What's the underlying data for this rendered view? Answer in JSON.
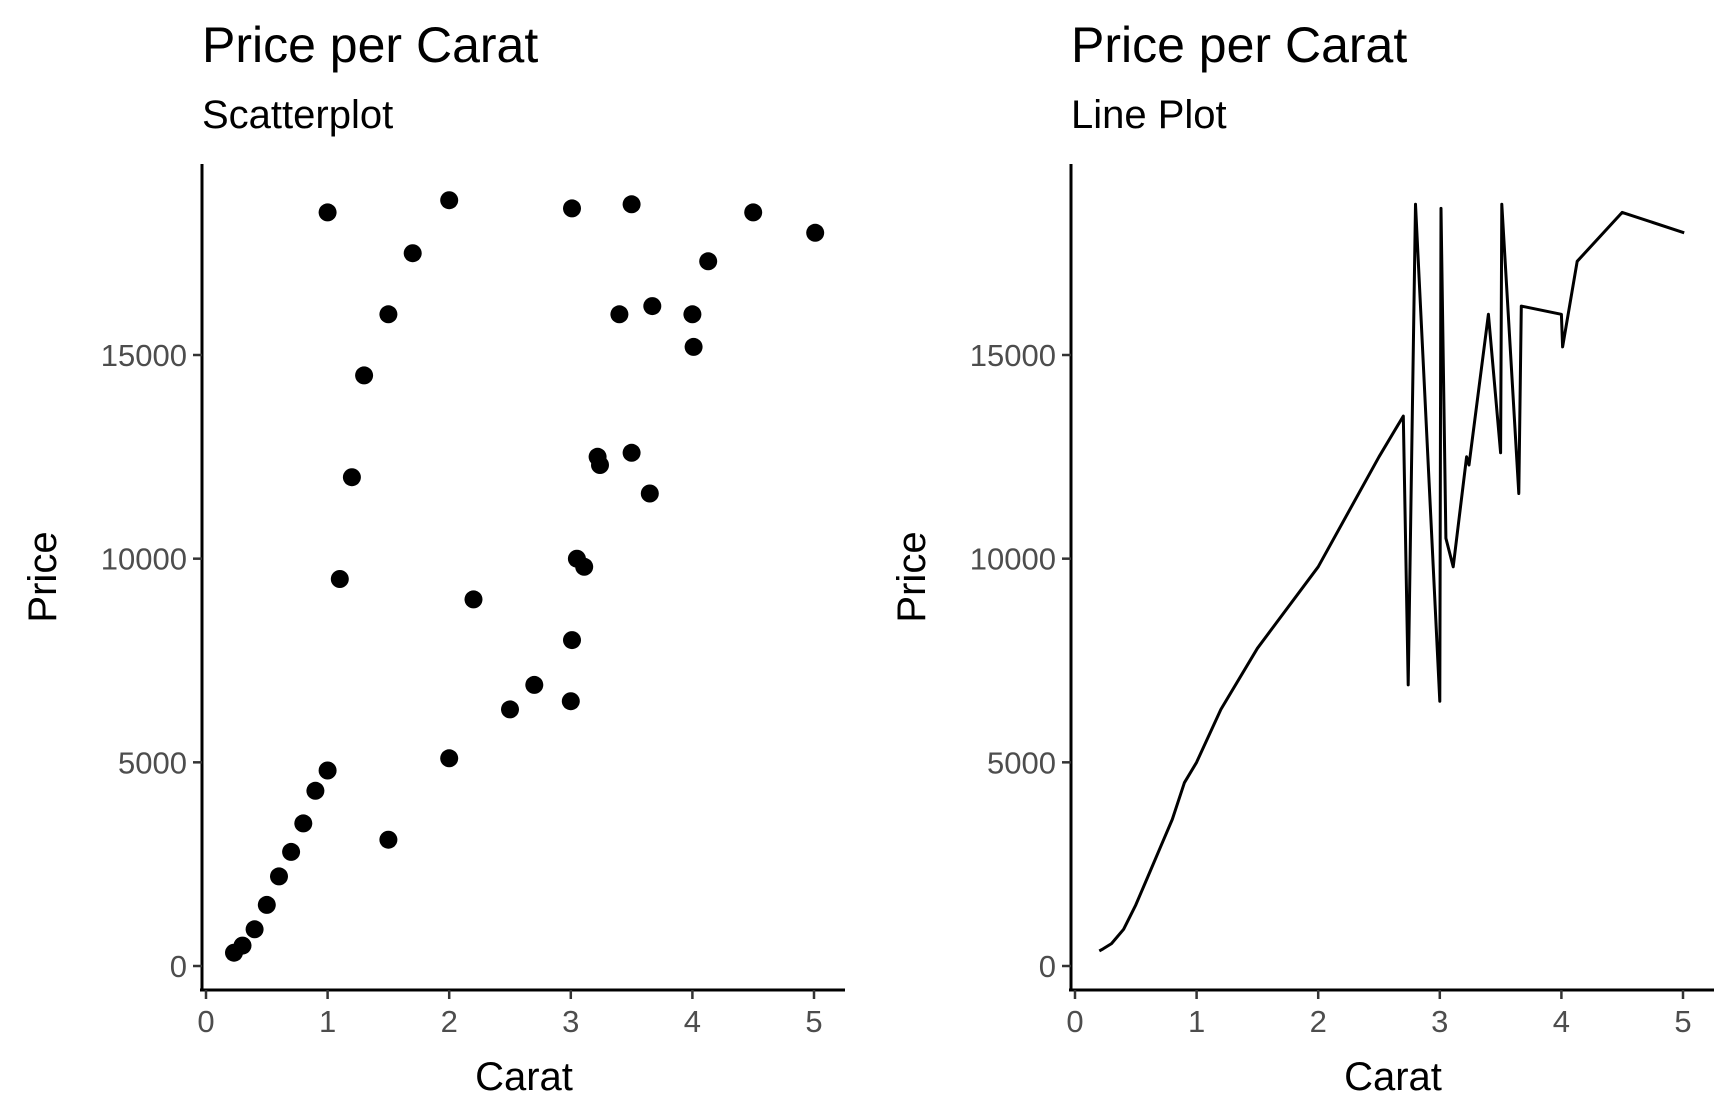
{
  "chart_data": [
    {
      "type": "scatter",
      "title": "Price per Carat",
      "subtitle": "Scatterplot",
      "xlabel": "Carat",
      "ylabel": "Price",
      "xlim": [
        0,
        5.2
      ],
      "ylim": [
        0,
        18800
      ],
      "xticks": [
        "0",
        "1",
        "2",
        "3",
        "4",
        "5"
      ],
      "yticks": [
        "0",
        "5000",
        "10000",
        "15000"
      ],
      "grid": false,
      "mark_color": "#000000",
      "series": [
        {
          "x": [
            0.23,
            0.3,
            0.4,
            0.5,
            0.6,
            0.7,
            0.8,
            0.9,
            1.0,
            1.0,
            1.1,
            1.2,
            1.3,
            1.5,
            1.5,
            1.7,
            2.0,
            2.0,
            2.2,
            2.5,
            2.7,
            3.0,
            3.01,
            3.01,
            3.05,
            3.11,
            3.22,
            3.24,
            3.4,
            3.5,
            3.5,
            3.65,
            3.67,
            4.0,
            4.01,
            4.13,
            4.5,
            5.01
          ],
          "y": [
            326,
            500,
            900,
            1500,
            2200,
            2800,
            3500,
            4300,
            4800,
            18500,
            9500,
            12000,
            14500,
            16000,
            3100,
            17500,
            18800,
            5100,
            9000,
            6300,
            6900,
            6500,
            8000,
            18600,
            10000,
            9800,
            12500,
            12300,
            16000,
            18700,
            12600,
            11600,
            16200,
            16000,
            15200,
            17300,
            18500,
            18000
          ]
        }
      ]
    },
    {
      "type": "line",
      "title": "Price per Carat",
      "subtitle": "Line Plot",
      "xlabel": "Carat",
      "ylabel": "Price",
      "xlim": [
        0,
        5.2
      ],
      "ylim": [
        0,
        18800
      ],
      "xticks": [
        "0",
        "1",
        "2",
        "3",
        "4",
        "5"
      ],
      "yticks": [
        "0",
        "5000",
        "10000",
        "15000"
      ],
      "grid": false,
      "mark_color": "#000000",
      "series": [
        {
          "x": [
            0.2,
            0.23,
            0.3,
            0.4,
            0.5,
            0.6,
            0.7,
            0.8,
            0.9,
            1.0,
            1.2,
            1.5,
            2.0,
            2.5,
            2.7,
            2.74,
            2.8,
            3.0,
            3.01,
            3.05,
            3.11,
            3.22,
            3.24,
            3.4,
            3.5,
            3.51,
            3.65,
            3.67,
            4.0,
            4.01,
            4.13,
            4.5,
            5.01
          ],
          "y": [
            370,
            420,
            550,
            900,
            1500,
            2200,
            2900,
            3600,
            4500,
            5000,
            6300,
            7800,
            9800,
            12500,
            13500,
            6900,
            18700,
            6500,
            18600,
            10500,
            9800,
            12500,
            12300,
            16000,
            12600,
            18700,
            11600,
            16200,
            16000,
            15200,
            17300,
            18500,
            18000
          ]
        }
      ]
    }
  ]
}
